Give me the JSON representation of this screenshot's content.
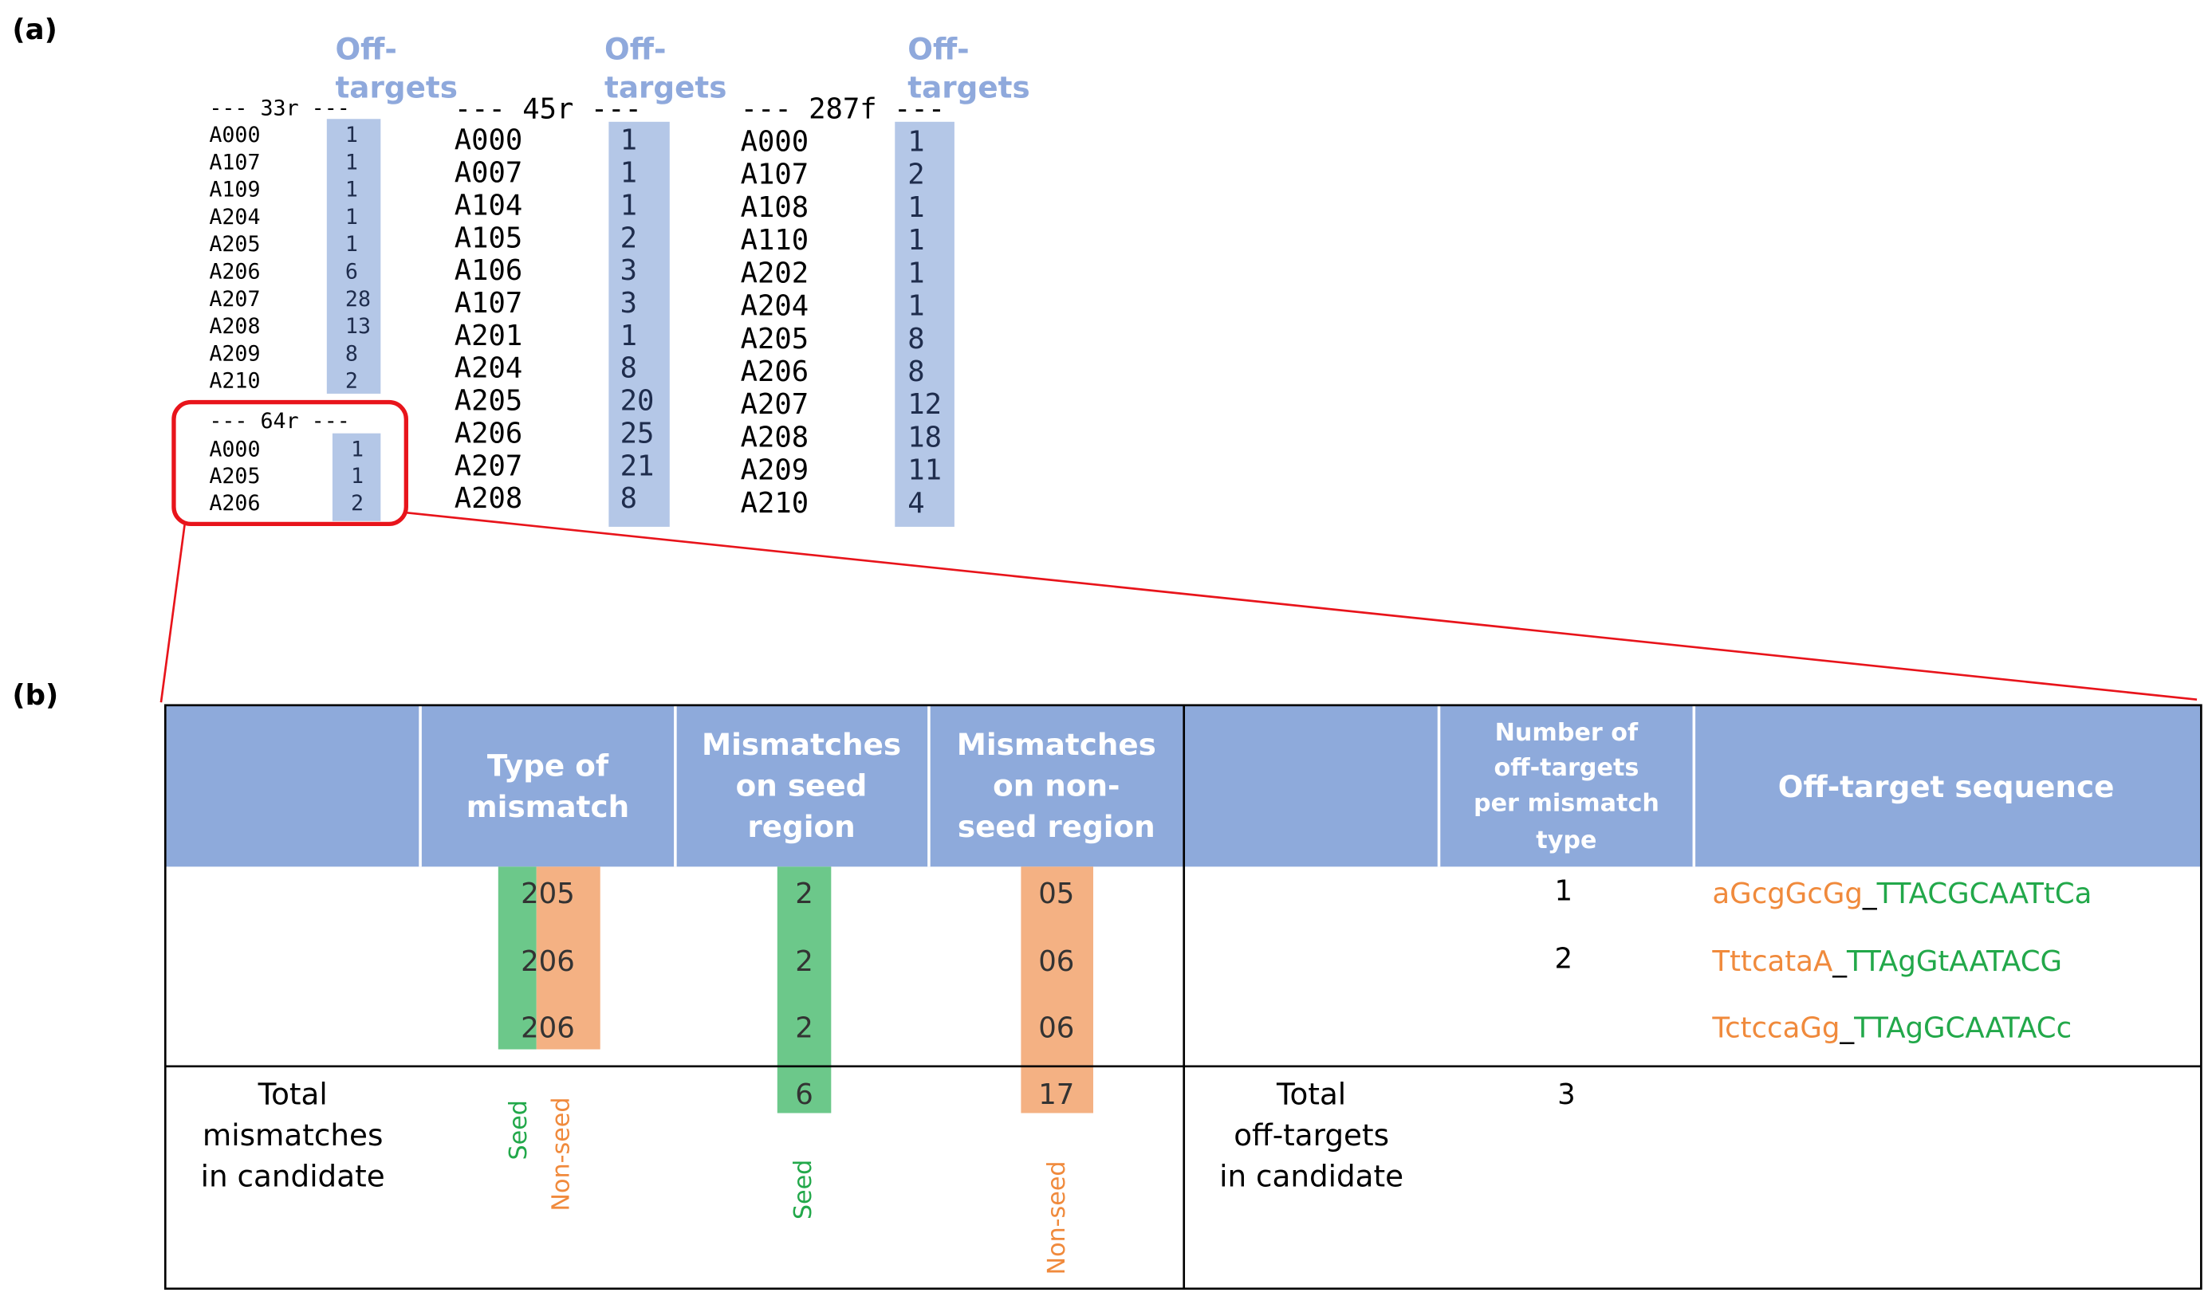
{
  "panel_a": {
    "label": "(a)",
    "header_lines": [
      "Off-",
      "targets"
    ],
    "groups": [
      {
        "title": "--- 33r ---",
        "rows": [
          [
            "A000",
            1
          ],
          [
            "A107",
            1
          ],
          [
            "A109",
            1
          ],
          [
            "A204",
            1
          ],
          [
            "A205",
            1
          ],
          [
            "A206",
            6
          ],
          [
            "A207",
            28
          ],
          [
            "A208",
            13
          ],
          [
            "A209",
            8
          ],
          [
            "A210",
            2
          ]
        ]
      },
      {
        "title": "--- 64r ---",
        "rows": [
          [
            "A000",
            1
          ],
          [
            "A205",
            1
          ],
          [
            "A206",
            2
          ]
        ]
      },
      {
        "title": "--- 45r ---",
        "rows": [
          [
            "A000",
            1
          ],
          [
            "A007",
            1
          ],
          [
            "A104",
            1
          ],
          [
            "A105",
            2
          ],
          [
            "A106",
            3
          ],
          [
            "A107",
            3
          ],
          [
            "A201",
            1
          ],
          [
            "A204",
            8
          ],
          [
            "A205",
            20
          ],
          [
            "A206",
            25
          ],
          [
            "A207",
            21
          ],
          [
            "A208",
            8
          ]
        ]
      },
      {
        "title": "--- 287f ---",
        "rows": [
          [
            "A000",
            1
          ],
          [
            "A107",
            2
          ],
          [
            "A108",
            1
          ],
          [
            "A110",
            1
          ],
          [
            "A202",
            1
          ],
          [
            "A204",
            1
          ],
          [
            "A205",
            8
          ],
          [
            "A206",
            8
          ],
          [
            "A207",
            12
          ],
          [
            "A208",
            18
          ],
          [
            "A209",
            11
          ],
          [
            "A210",
            4
          ]
        ]
      }
    ]
  },
  "panel_b": {
    "label": "(b)",
    "headers": [
      [
        "Type of",
        "mismatch"
      ],
      [
        "Mismatches",
        "on seed",
        "region"
      ],
      [
        "Mismatches",
        "on non-",
        "seed region"
      ],
      [
        "Number of",
        "off-targets",
        "per mismatch",
        "type"
      ],
      [
        "Off-target sequence"
      ]
    ],
    "rows": [
      {
        "type": "205",
        "seed": "2",
        "nonseed": "05",
        "count": 1,
        "seq_prefix": "aGcgGcGg",
        "seq_suffix": "TTACGCAATtCa"
      },
      {
        "type": "206",
        "seed": "2",
        "nonseed": "06",
        "count": 2,
        "seq_prefix": "TttcataA",
        "seq_suffix": "TTAgGtAATACG"
      },
      {
        "type": "206",
        "seed": "2",
        "nonseed": "06",
        "seq_prefix": "TctccaGg",
        "seq_suffix": "TTAgGCAATACc"
      }
    ],
    "seq_separator": "_",
    "total_mismatches_label": [
      "Total",
      "mismatches",
      "in candidate"
    ],
    "seed_total": "6",
    "nonseed_total": "17",
    "total_offtargets_label": [
      "Total",
      "off-targets",
      "in candidate"
    ],
    "offtargets_total": 3,
    "seed_label": "Seed",
    "nonseed_label": "Non-seed"
  }
}
